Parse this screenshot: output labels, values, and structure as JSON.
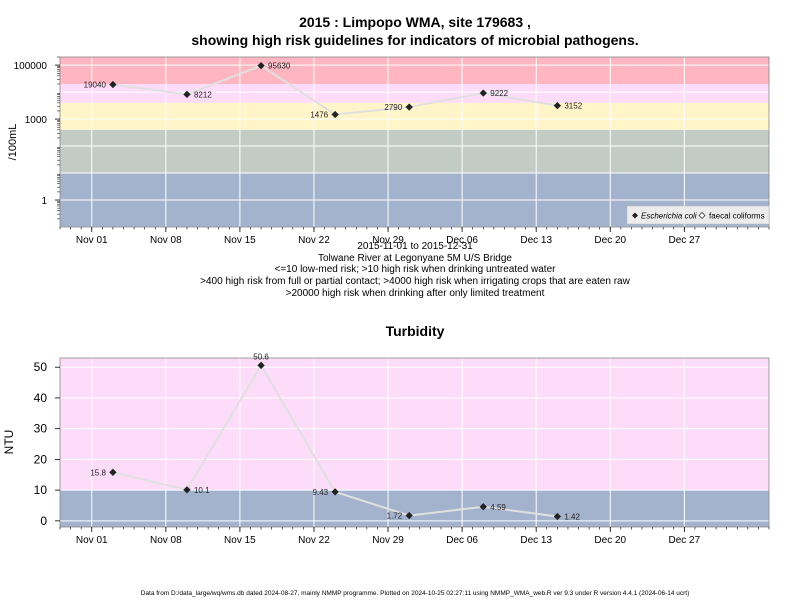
{
  "chart_data": [
    {
      "type": "scatter",
      "title_lines": [
        "2015 : Limpopo WMA, site 179683 ,",
        "showing high risk guidelines for indicators of microbial pathogens."
      ],
      "ylabel": "/100mL",
      "y_scale": "log",
      "ylim": [
        0.1,
        200000
      ],
      "y_ticks": [
        1,
        1000,
        100000
      ],
      "y_tick_labels": [
        "1",
        "1000",
        "100000"
      ],
      "x_ticks": [
        "2015-11-01",
        "2015-11-08",
        "2015-11-15",
        "2015-11-22",
        "2015-11-29",
        "2015-12-06",
        "2015-12-13",
        "2015-12-20",
        "2015-12-27"
      ],
      "x_tick_labels": [
        "Nov 01",
        "Nov 08",
        "Nov 15",
        "Nov 22",
        "Nov 29",
        "Dec 06",
        "Dec 13",
        "Dec 20",
        "Dec 27"
      ],
      "xlim": [
        "2015-10-29",
        "2016-01-04"
      ],
      "bands": [
        {
          "from": 0.1,
          "to": 10,
          "color": "#a3b3cd"
        },
        {
          "from": 10,
          "to": 400,
          "color": "#c2cbc4"
        },
        {
          "from": 400,
          "to": 4000,
          "color": "#fff5c8"
        },
        {
          "from": 4000,
          "to": 20000,
          "color": "#fddcfa"
        },
        {
          "from": 20000,
          "to": 200000,
          "color": "#ffb6c1"
        }
      ],
      "grid": true,
      "series": [
        {
          "name": "Escherichia coli",
          "marker": "filled-diamond",
          "line_color": "#e0e0e0",
          "points": [
            {
              "x": "2015-11-03",
              "y": 19040,
              "label": "19040",
              "label_side": "left"
            },
            {
              "x": "2015-11-10",
              "y": 8212,
              "label": "8212",
              "label_side": "right"
            },
            {
              "x": "2015-11-17",
              "y": 95630,
              "label": "95630",
              "label_side": "right"
            },
            {
              "x": "2015-11-24",
              "y": 1476,
              "label": "1476",
              "label_side": "left"
            },
            {
              "x": "2015-12-01",
              "y": 2790,
              "label": "2790",
              "label_side": "left"
            },
            {
              "x": "2015-12-08",
              "y": 9222,
              "label": "9222",
              "label_side": "right"
            },
            {
              "x": "2015-12-15",
              "y": 3152,
              "label": "3152",
              "label_side": "right"
            }
          ]
        },
        {
          "name": "faecal coliforms",
          "marker": "open-diamond",
          "points": []
        }
      ],
      "legend_position": "bottom-right",
      "notes": [
        "2015-11-01 to 2015-12-31",
        "Tolwane River at Legonyane 5M U/S Bridge",
        "<=10 low-med risk; >10 high risk when drinking untreated water",
        ">400 high risk from full or partial contact; >4000 high risk when irrigating crops that are eaten raw",
        ">20000 high risk when drinking after only limited treatment"
      ]
    },
    {
      "type": "scatter",
      "title": "Turbidity",
      "ylabel": "NTU",
      "ylim": [
        -2,
        53
      ],
      "y_ticks": [
        0,
        10,
        20,
        30,
        40,
        50
      ],
      "x_ticks": [
        "2015-11-01",
        "2015-11-08",
        "2015-11-15",
        "2015-11-22",
        "2015-11-29",
        "2015-12-06",
        "2015-12-13",
        "2015-12-20",
        "2015-12-27"
      ],
      "x_tick_labels": [
        "Nov 01",
        "Nov 08",
        "Nov 15",
        "Nov 22",
        "Nov 29",
        "Dec 06",
        "Dec 13",
        "Dec 20",
        "Dec 27"
      ],
      "xlim": [
        "2015-10-29",
        "2016-01-04"
      ],
      "bands": [
        {
          "from": -2,
          "to": 10,
          "color": "#a3b3cd"
        },
        {
          "from": 10,
          "to": 53,
          "color": "#fddcfa"
        }
      ],
      "grid": true,
      "series": [
        {
          "name": "Turbidity",
          "marker": "filled-diamond",
          "line_color": "#e0e0e0",
          "points": [
            {
              "x": "2015-11-03",
              "y": 15.8,
              "label": "15.8",
              "label_side": "left"
            },
            {
              "x": "2015-11-10",
              "y": 10.1,
              "label": "10.1",
              "label_side": "right"
            },
            {
              "x": "2015-11-17",
              "y": 50.6,
              "label": "50.6",
              "label_side": "above"
            },
            {
              "x": "2015-11-24",
              "y": 9.43,
              "label": "9.43",
              "label_side": "left"
            },
            {
              "x": "2015-12-01",
              "y": 1.72,
              "label": "1.72",
              "label_side": "left"
            },
            {
              "x": "2015-12-08",
              "y": 4.59,
              "label": "4.59",
              "label_side": "right"
            },
            {
              "x": "2015-12-15",
              "y": 1.42,
              "label": "1.42",
              "label_side": "right"
            }
          ]
        }
      ]
    }
  ],
  "footer": "Data from D:/data_large/wq/wms.db dated 2024-08-27, mainly NMMP programme. Plotted on 2024-10-25 02:27:11 using NMMP_WMA_web.R ver 9.3 under R version 4.4.1 (2024-06-14 ucrt)"
}
